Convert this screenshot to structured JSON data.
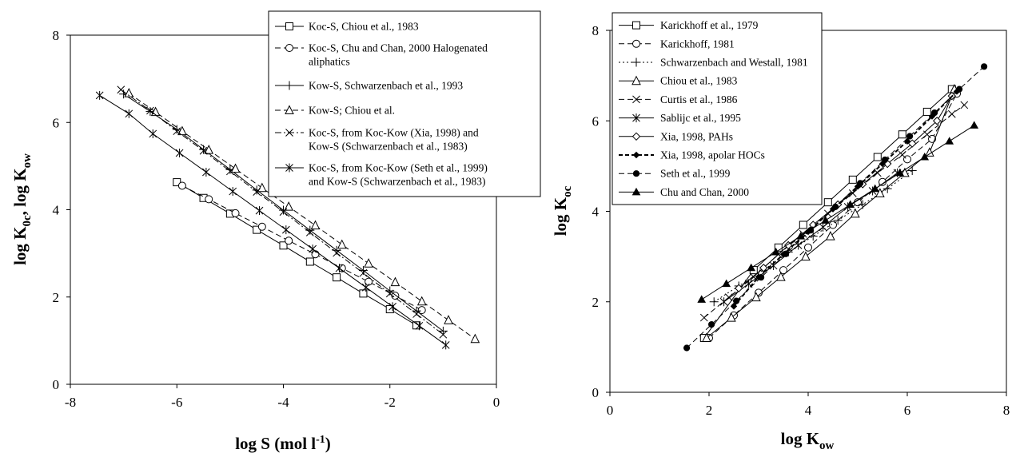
{
  "chart_data": [
    {
      "type": "line",
      "xlabel": {
        "base": "log S (mol l",
        "sup": "-1",
        "tail": ")"
      },
      "ylabel": {
        "a": "log K",
        "a_sub": "0c",
        "b": ", log K",
        "b_sub": "ow"
      },
      "xlim": [
        -8,
        0
      ],
      "ylim": [
        0,
        8
      ],
      "xticks": [
        -8,
        -6,
        -4,
        -2,
        0
      ],
      "yticks": [
        0,
        2,
        4,
        6,
        8
      ],
      "legend_position": "top-right",
      "series": [
        {
          "name": "Koc-S, Chiou et al., 1983",
          "marker": "square",
          "dash": "solid",
          "x": [
            -6,
            -5.5,
            -5,
            -4.5,
            -4,
            -3.5,
            -3,
            -2.5,
            -2,
            -1.5
          ],
          "y": [
            4.63,
            4.27,
            3.91,
            3.54,
            3.18,
            2.81,
            2.45,
            2.08,
            1.72,
            1.35
          ]
        },
        {
          "name": "Koc-S, Chu and Chan, 2000 Halogenated aliphatics",
          "marker": "circle",
          "dash": "dashed",
          "x": [
            -5.9,
            -5.4,
            -4.9,
            -4.4,
            -3.9,
            -3.4,
            -2.9,
            -2.4,
            -1.9,
            -1.4
          ],
          "y": [
            4.55,
            4.24,
            3.92,
            3.61,
            3.29,
            2.98,
            2.66,
            2.35,
            2.03,
            1.7
          ]
        },
        {
          "name": "Kow-S, Schwarzenbach et al., 1993",
          "marker": "plus",
          "dash": "solid",
          "x": [
            -7,
            -6.5,
            -6,
            -5.5,
            -5,
            -4.5,
            -4,
            -3.5,
            -3,
            -2.5,
            -2,
            -1.5,
            -1
          ],
          "y": [
            6.65,
            6.25,
            5.84,
            5.38,
            4.92,
            4.45,
            3.99,
            3.53,
            3.07,
            2.61,
            2.14,
            1.68,
            1.22
          ]
        },
        {
          "name": "Kow-S; Chiou et al.",
          "marker": "triangle",
          "dash": "dashed",
          "x": [
            -6.9,
            -6.4,
            -5.9,
            -5.4,
            -4.9,
            -4.4,
            -3.9,
            -3.4,
            -2.9,
            -2.4,
            -1.9,
            -1.4,
            -0.9,
            -0.4
          ],
          "y": [
            6.67,
            6.24,
            5.8,
            5.37,
            4.94,
            4.5,
            4.07,
            3.64,
            3.2,
            2.77,
            2.34,
            1.9,
            1.47,
            1.04
          ]
        },
        {
          "name": "Koc-S, from Koc-Kow (Xia, 1998) and Kow-S (Schwarzenbach et al., 1983)",
          "marker": "x",
          "dash": "dashdot",
          "x": [
            -7.05,
            -6.5,
            -6,
            -5.5,
            -5,
            -4.5,
            -4,
            -3.5,
            -3,
            -2.5,
            -2,
            -1.5,
            -1
          ],
          "y": [
            6.75,
            6.27,
            5.8,
            5.35,
            4.88,
            4.41,
            3.95,
            3.48,
            3.01,
            2.55,
            2.08,
            1.61,
            1.14
          ]
        },
        {
          "name": "Koc-S, from Koc-Kow (Seth et al., 1999) and Kow-S (Schwarzenbach et al., 1983)",
          "marker": "asterisk",
          "dash": "solid",
          "x": [
            -7.45,
            -6.9,
            -6.45,
            -5.95,
            -5.45,
            -4.95,
            -4.45,
            -3.95,
            -3.45,
            -2.95,
            -2.45,
            -1.95,
            -1.45,
            -0.95
          ],
          "y": [
            6.62,
            6.2,
            5.74,
            5.3,
            4.86,
            4.42,
            3.98,
            3.54,
            3.1,
            2.66,
            2.22,
            1.78,
            1.34,
            0.9
          ]
        }
      ]
    },
    {
      "type": "line",
      "xlabel": {
        "base": "log K",
        "sub": "ow"
      },
      "ylabel": {
        "base": "log K",
        "sub": "oc"
      },
      "xlim": [
        0,
        8
      ],
      "ylim": [
        0,
        8
      ],
      "xticks": [
        0,
        2,
        4,
        6,
        8
      ],
      "yticks": [
        0,
        2,
        4,
        6,
        8
      ],
      "legend_position": "top-left",
      "series": [
        {
          "name": "Karickhoff et al., 1979",
          "marker": "square",
          "dash": "solid",
          "x": [
            1.9,
            2.9,
            3.4,
            3.9,
            4.4,
            4.9,
            5.4,
            5.9,
            6.4,
            6.9
          ],
          "y": [
            1.2,
            2.7,
            3.2,
            3.7,
            4.2,
            4.7,
            5.2,
            5.7,
            6.2,
            6.7
          ]
        },
        {
          "name": "Karickhoff, 1981",
          "marker": "circle",
          "dash": "dashed",
          "x": [
            2,
            2.5,
            3,
            3.5,
            4,
            4.5,
            5,
            5.5,
            6,
            6.5,
            7
          ],
          "y": [
            1.2,
            1.7,
            2.2,
            2.7,
            3.2,
            3.7,
            4.2,
            4.65,
            5.15,
            5.6,
            6.6
          ]
        },
        {
          "name": "Schwarzenbach and Westall, 1981",
          "marker": "plus",
          "dash": "dotted",
          "x": [
            2.1,
            2.6,
            3.1,
            3.6,
            4.1,
            4.6,
            5.1,
            5.6,
            6.1
          ],
          "y": [
            2,
            2.35,
            2.7,
            3.1,
            3.45,
            3.8,
            4.15,
            4.5,
            4.9
          ]
        },
        {
          "name": "Chiou et al., 1983",
          "marker": "triangle",
          "dash": "solid",
          "x": [
            1.95,
            2.45,
            2.95,
            3.45,
            3.95,
            4.45,
            4.95,
            5.45,
            5.95,
            6.45,
            6.95
          ],
          "y": [
            1.2,
            1.65,
            2.1,
            2.55,
            3.0,
            3.45,
            3.95,
            4.4,
            4.85,
            5.3,
            6.7
          ]
        },
        {
          "name": "Curtis et al., 1986",
          "marker": "x",
          "dash": "dashed",
          "x": [
            1.9,
            2.4,
            2.9,
            3.4,
            3.9,
            4.4,
            4.9,
            5.4,
            5.9,
            6.4,
            6.9,
            7.15
          ],
          "y": [
            1.65,
            2.1,
            2.55,
            3.05,
            3.5,
            3.95,
            4.4,
            4.85,
            5.25,
            5.7,
            6.15,
            6.35
          ]
        },
        {
          "name": "Sablijc et al., 1995",
          "marker": "asterisk",
          "dash": "solid",
          "x": [
            2.3,
            2.8,
            3.3,
            3.8,
            4.3,
            4.8,
            5.3,
            5.8
          ],
          "y": [
            2.0,
            2.4,
            2.8,
            3.25,
            3.65,
            4.1,
            4.45,
            4.85
          ]
        },
        {
          "name": "Xia, 1998, PAHs",
          "marker": "diamond",
          "dash": "solid",
          "x": [
            2.6,
            3.1,
            3.6,
            4.1,
            4.6,
            5.1,
            5.6,
            6.1,
            6.6,
            6.9
          ],
          "y": [
            2.3,
            2.75,
            3.25,
            3.7,
            4.15,
            4.6,
            5.05,
            5.5,
            6.0,
            6.55
          ]
        },
        {
          "name": "Xia, 1998, apolar HOCs",
          "marker": "filled-diamond",
          "dash": "dashed-bold",
          "x": [
            2.5,
            3.0,
            3.5,
            4.0,
            4.5,
            5.0,
            5.5,
            6.0,
            6.5,
            7.0
          ],
          "y": [
            1.9,
            2.55,
            3.05,
            3.55,
            4.05,
            4.55,
            5.05,
            5.55,
            6.1,
            6.65
          ]
        },
        {
          "name": "Seth et al., 1999",
          "marker": "filled-circle",
          "dash": "dashed",
          "x": [
            1.55,
            2.05,
            2.55,
            3.05,
            3.55,
            4.05,
            4.55,
            5.05,
            5.55,
            6.05,
            6.55,
            7.05,
            7.55
          ],
          "y": [
            0.98,
            1.5,
            2.02,
            2.54,
            3.06,
            3.58,
            4.1,
            4.62,
            5.14,
            5.66,
            6.18,
            6.7,
            7.2
          ]
        },
        {
          "name": "Chu and Chan, 2000",
          "marker": "filled-triangle",
          "dash": "solid",
          "x": [
            1.85,
            2.35,
            2.85,
            3.35,
            3.85,
            4.35,
            4.85,
            5.35,
            5.85,
            6.35,
            6.85,
            7.35
          ],
          "y": [
            2.05,
            2.4,
            2.75,
            3.1,
            3.45,
            3.8,
            4.15,
            4.5,
            4.85,
            5.2,
            5.55,
            5.9
          ]
        }
      ]
    }
  ]
}
